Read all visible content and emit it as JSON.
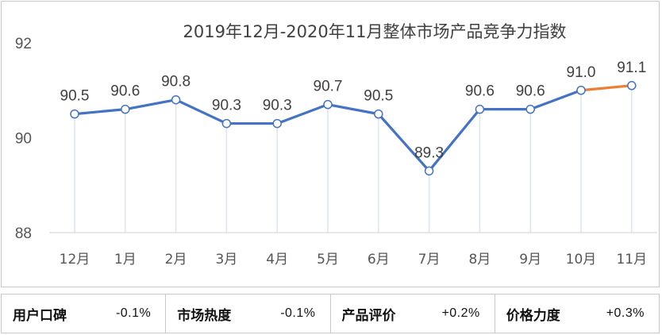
{
  "chart_data": {
    "type": "line",
    "title": "2019年12月-2020年11月整体市场产品竞争力指数",
    "categories": [
      "12月",
      "1月",
      "2月",
      "3月",
      "4月",
      "5月",
      "6月",
      "7月",
      "8月",
      "9月",
      "10月",
      "11月"
    ],
    "values": [
      90.5,
      90.6,
      90.8,
      90.3,
      90.3,
      90.7,
      90.5,
      89.3,
      90.6,
      90.6,
      91.0,
      91.1
    ],
    "value_labels": [
      "90.5",
      "90.6",
      "90.8",
      "90.3",
      "90.3",
      "90.7",
      "90.5",
      "89.3",
      "90.6",
      "90.6",
      "91.0",
      "91.1"
    ],
    "ylim": [
      88,
      92
    ],
    "yticks": [
      "88",
      "90",
      "92"
    ],
    "xlabel": "",
    "ylabel": "",
    "grid": false,
    "line_color": "#4472c4",
    "highlight_color": "#ed7d31",
    "highlight_from_index": 10
  },
  "metrics": [
    {
      "label": "用户口碑",
      "value": "-0.1%"
    },
    {
      "label": "市场热度",
      "value": "-0.1%"
    },
    {
      "label": "产品评价",
      "value": "+0.2%"
    },
    {
      "label": "价格力度",
      "value": "+0.3%"
    }
  ]
}
